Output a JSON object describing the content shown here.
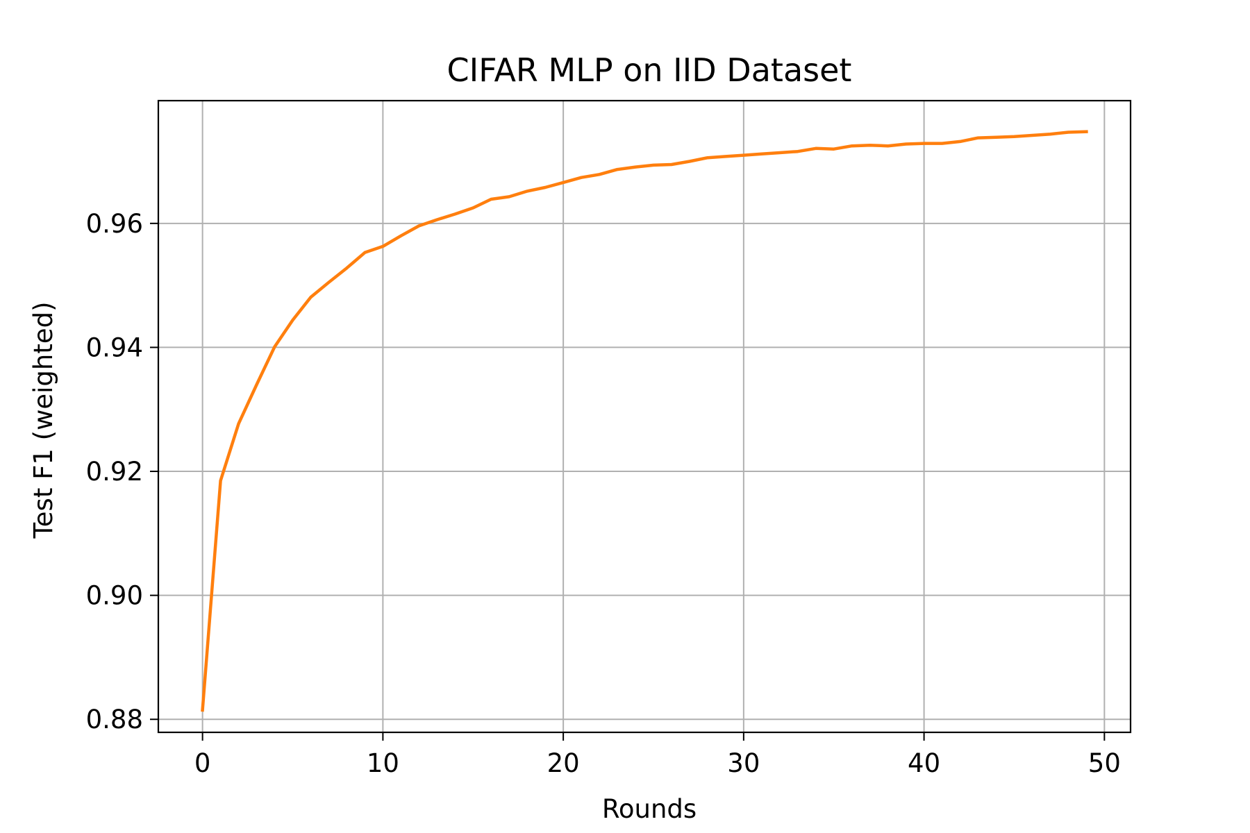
{
  "chart_data": {
    "type": "line",
    "title": "CIFAR MLP on IID Dataset",
    "xlabel": "Rounds",
    "ylabel": "Test F1 (weighted)",
    "xlim": [
      -2.45,
      51.45
    ],
    "ylim": [
      0.8779,
      0.9798
    ],
    "x_ticks": [
      0,
      10,
      20,
      30,
      40,
      50
    ],
    "x_tick_labels": [
      "0",
      "10",
      "20",
      "30",
      "40",
      "50"
    ],
    "y_ticks": [
      0.88,
      0.9,
      0.92,
      0.94,
      0.96
    ],
    "y_tick_labels": [
      "0.88",
      "0.90",
      "0.92",
      "0.94",
      "0.96"
    ],
    "grid": true,
    "series": [
      {
        "color": "#ff7f0e",
        "x": [
          0,
          1,
          2,
          3,
          4,
          5,
          6,
          7,
          8,
          9,
          10,
          11,
          12,
          13,
          14,
          15,
          16,
          17,
          18,
          19,
          20,
          21,
          22,
          23,
          24,
          25,
          26,
          27,
          28,
          29,
          30,
          31,
          32,
          33,
          34,
          35,
          36,
          37,
          38,
          39,
          40,
          41,
          42,
          43,
          44,
          45,
          46,
          47,
          48,
          49
        ],
        "values": [
          0.8815,
          0.9185,
          0.9277,
          0.934,
          0.9401,
          0.9444,
          0.9481,
          0.9505,
          0.9528,
          0.9553,
          0.9563,
          0.958,
          0.9596,
          0.9606,
          0.9615,
          0.9625,
          0.9639,
          0.9643,
          0.9652,
          0.9658,
          0.9666,
          0.9674,
          0.9679,
          0.9687,
          0.9691,
          0.9694,
          0.9695,
          0.97,
          0.9706,
          0.9708,
          0.971,
          0.9712,
          0.9714,
          0.9716,
          0.9721,
          0.972,
          0.9725,
          0.9726,
          0.9725,
          0.9728,
          0.9729,
          0.9729,
          0.9732,
          0.9738,
          0.9739,
          0.974,
          0.9742,
          0.9744,
          0.9747,
          0.9748
        ]
      }
    ]
  }
}
